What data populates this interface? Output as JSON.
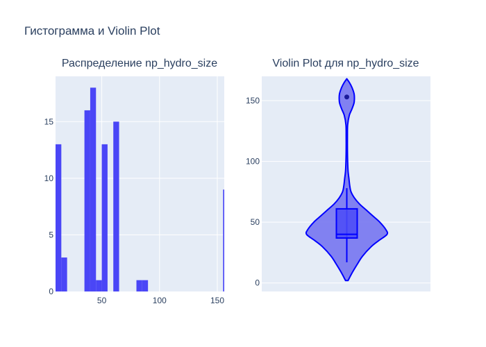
{
  "figure": {
    "title": "Гистограмма и Violin Plot"
  },
  "colors": {
    "plot_bg": "#E5ECF6",
    "grid": "#ffffff",
    "text": "#2a3f5f",
    "histogram_bar": "#4a46f6",
    "violin_line": "#0000ff",
    "violin_fill": "#7b7bf0"
  },
  "chart_data": [
    {
      "type": "bar",
      "title": "Распределение np_hydro_size",
      "xlim": [
        10,
        156
      ],
      "ylim": [
        0,
        19
      ],
      "x_ticks": [
        50,
        100,
        150
      ],
      "y_ticks": [
        0,
        5,
        10,
        15
      ],
      "grid": true,
      "bins": [
        {
          "x0": 10,
          "x1": 15,
          "count": 13
        },
        {
          "x0": 15,
          "x1": 20,
          "count": 3
        },
        {
          "x0": 20,
          "x1": 25,
          "count": 0
        },
        {
          "x0": 25,
          "x1": 30,
          "count": 0
        },
        {
          "x0": 30,
          "x1": 35,
          "count": 0
        },
        {
          "x0": 35,
          "x1": 40,
          "count": 16
        },
        {
          "x0": 40,
          "x1": 45,
          "count": 18
        },
        {
          "x0": 45,
          "x1": 50,
          "count": 1
        },
        {
          "x0": 50,
          "x1": 55,
          "count": 13
        },
        {
          "x0": 55,
          "x1": 60,
          "count": 0
        },
        {
          "x0": 60,
          "x1": 65,
          "count": 15
        },
        {
          "x0": 65,
          "x1": 70,
          "count": 0
        },
        {
          "x0": 70,
          "x1": 75,
          "count": 0
        },
        {
          "x0": 75,
          "x1": 80,
          "count": 0
        },
        {
          "x0": 80,
          "x1": 85,
          "count": 1
        },
        {
          "x0": 85,
          "x1": 90,
          "count": 1
        },
        {
          "x0": 155,
          "x1": 160,
          "count": 9
        }
      ]
    },
    {
      "type": "violin",
      "title": "Violin Plot для np_hydro_size",
      "ylim": [
        -7,
        170
      ],
      "y_ticks": [
        0,
        50,
        100,
        150
      ],
      "grid": true,
      "box": {
        "q1": 37,
        "median": 40,
        "q3": 61,
        "whisker_low": 17,
        "whisker_high": 78
      },
      "outliers": [
        153
      ],
      "density": [
        {
          "y": 2,
          "w": 0.03
        },
        {
          "y": 8,
          "w": 0.12
        },
        {
          "y": 15,
          "w": 0.24
        },
        {
          "y": 22,
          "w": 0.37
        },
        {
          "y": 30,
          "w": 0.58
        },
        {
          "y": 35,
          "w": 0.76
        },
        {
          "y": 40,
          "w": 0.95
        },
        {
          "y": 44,
          "w": 0.92
        },
        {
          "y": 50,
          "w": 0.78
        },
        {
          "y": 55,
          "w": 0.62
        },
        {
          "y": 60,
          "w": 0.46
        },
        {
          "y": 65,
          "w": 0.3
        },
        {
          "y": 70,
          "w": 0.18
        },
        {
          "y": 75,
          "w": 0.1
        },
        {
          "y": 80,
          "w": 0.07
        },
        {
          "y": 86,
          "w": 0.05
        },
        {
          "y": 92,
          "w": 0.03
        },
        {
          "y": 100,
          "w": 0.02
        },
        {
          "y": 110,
          "w": 0.015
        },
        {
          "y": 120,
          "w": 0.015
        },
        {
          "y": 130,
          "w": 0.02
        },
        {
          "y": 138,
          "w": 0.06
        },
        {
          "y": 143,
          "w": 0.12
        },
        {
          "y": 148,
          "w": 0.17
        },
        {
          "y": 152,
          "w": 0.18
        },
        {
          "y": 156,
          "w": 0.17
        },
        {
          "y": 161,
          "w": 0.12
        },
        {
          "y": 165,
          "w": 0.06
        },
        {
          "y": 168,
          "w": 0.0
        }
      ]
    }
  ]
}
